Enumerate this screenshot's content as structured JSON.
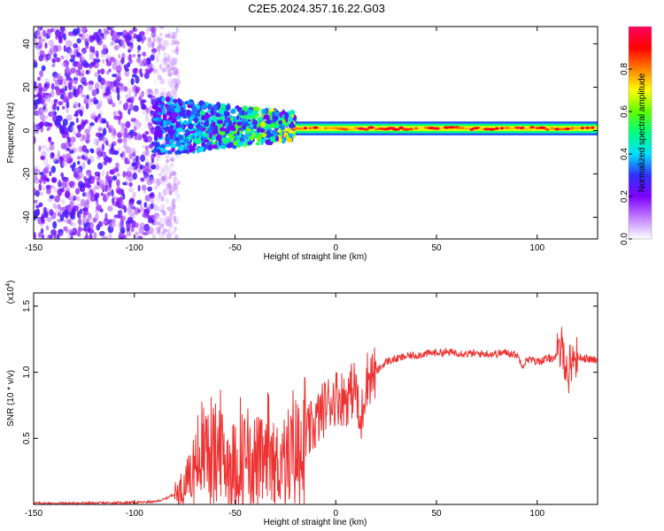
{
  "title": "C2E5.2024.357.16.22.G03",
  "chart_data": [
    {
      "type": "heatmap",
      "title": "C2E5.2024.357.16.22.G03",
      "xlabel": "Height of straight line (km)",
      "ylabel": "Frequency (Hz)",
      "xlim": [
        -150,
        130
      ],
      "ylim": [
        -50,
        48
      ],
      "xticks": [
        "-150",
        "-100",
        "-50",
        "0",
        "50",
        "100"
      ],
      "yticks": [
        "40",
        "20",
        "0",
        "-20",
        "-40"
      ],
      "colorbar": {
        "label": "Normalized spectral amplitude",
        "ticks": [
          "0.0",
          "0.2",
          "0.4",
          "0.6",
          "0.8"
        ],
        "range": [
          0,
          1
        ],
        "colors": [
          "#ffffff",
          "#c080ff",
          "#8000ff",
          "#3030ff",
          "#00e0ff",
          "#00ff80",
          "#60ff00",
          "#ffff00",
          "#ff8000",
          "#ff0000",
          "#ff0060"
        ]
      },
      "features": [
        {
          "x_range": [
            -150,
            -90
          ],
          "freq_range": [
            -50,
            48
          ],
          "amplitude": 0.15,
          "note": "scattered noise"
        },
        {
          "x_range": [
            -90,
            -20
          ],
          "freq_range": [
            -12,
            15
          ],
          "amplitude": 0.3,
          "note": "emerging signal"
        },
        {
          "x_range": [
            -20,
            130
          ],
          "freq_center": 1,
          "amplitude": 0.95,
          "note": "narrow band signal"
        }
      ]
    },
    {
      "type": "line",
      "xlabel": "Height of straight line (km)",
      "ylabel": "SNR (10 * v/v)",
      "scale_label": "(x10",
      "scale_exp": "4",
      "scale_close": ")",
      "xlim": [
        -150,
        130
      ],
      "ylim": [
        0,
        1.6
      ],
      "xticks": [
        "-150",
        "-100",
        "-50",
        "0",
        "50",
        "100"
      ],
      "yticks": [
        "0.5",
        "1.0",
        "1.5"
      ],
      "line_color": "#ee3333",
      "series": [
        {
          "name": "SNR",
          "x": [
            -150,
            -120,
            -100,
            -90,
            -85,
            -80,
            -75,
            -72,
            -70,
            -65,
            -60,
            -55,
            -50,
            -45,
            -40,
            -35,
            -30,
            -25,
            -20,
            -15,
            -10,
            -5,
            0,
            5,
            10,
            12,
            15,
            20,
            25,
            30,
            35,
            40,
            45,
            50,
            55,
            60,
            65,
            70,
            75,
            80,
            85,
            90,
            93,
            95,
            100,
            105,
            110,
            113,
            115,
            117,
            120,
            125,
            130
          ],
          "y": [
            0.01,
            0.01,
            0.015,
            0.02,
            0.04,
            0.08,
            0.14,
            0.2,
            0.3,
            0.42,
            0.38,
            0.34,
            0.3,
            0.36,
            0.34,
            0.3,
            0.3,
            0.35,
            0.4,
            0.5,
            0.62,
            0.75,
            0.82,
            0.8,
            0.9,
            0.55,
            0.95,
            1.0,
            1.08,
            1.1,
            1.12,
            1.13,
            1.14,
            1.15,
            1.15,
            1.15,
            1.14,
            1.14,
            1.14,
            1.14,
            1.15,
            1.13,
            1.05,
            1.1,
            1.08,
            1.1,
            1.12,
            1.2,
            0.95,
            1.1,
            1.12,
            1.1,
            1.09
          ]
        }
      ]
    }
  ]
}
